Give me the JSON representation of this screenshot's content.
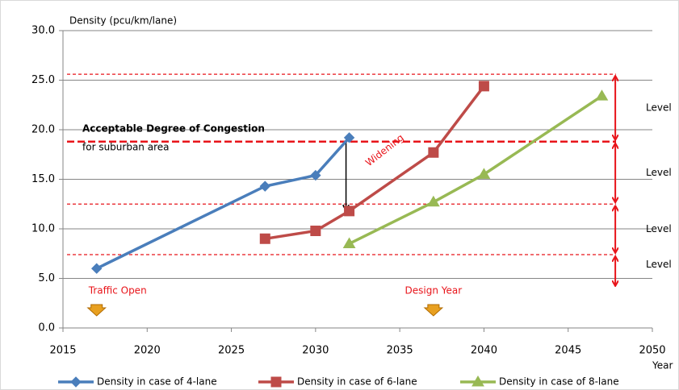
{
  "chart_data": {
    "type": "line",
    "y_label": "Density (pcu/km/lane)",
    "x_label": "Year",
    "xlim": [
      2015,
      2050
    ],
    "xticks": [
      2015,
      2020,
      2025,
      2030,
      2035,
      2040,
      2045,
      2050
    ],
    "ylim": [
      0,
      30
    ],
    "yticks": [
      {
        "value": 0,
        "label": "0.0"
      },
      {
        "value": 5,
        "label": "5.0"
      },
      {
        "value": 10,
        "label": "10.0"
      },
      {
        "value": 15,
        "label": "15.0"
      },
      {
        "value": 20,
        "label": "20.0"
      },
      {
        "value": 25,
        "label": "25.0"
      },
      {
        "value": 30,
        "label": "30.0"
      }
    ],
    "grid": true,
    "series": [
      {
        "name": "Density in case of 4-lane",
        "color": "#4a7ebb",
        "marker": "diamond",
        "x": [
          2017,
          2027,
          2030,
          2032
        ],
        "values": [
          6.0,
          14.3,
          15.4,
          19.2
        ]
      },
      {
        "name": "Density in case of 6-lane",
        "color": "#be4b48",
        "marker": "square",
        "x": [
          2027,
          2030,
          2032,
          2037,
          2040
        ],
        "values": [
          9.0,
          9.8,
          11.8,
          17.7,
          24.4
        ]
      },
      {
        "name": "Density in case of 8-lane",
        "color": "#98b954",
        "marker": "triangle",
        "x": [
          2032,
          2037,
          2040,
          2047
        ],
        "values": [
          8.5,
          12.7,
          15.5,
          23.4
        ]
      }
    ],
    "reference_lines": [
      25.6,
      18.8,
      12.5,
      7.4
    ],
    "reference_color": "#e8141a",
    "congestion_label": [
      "Acceptable Degree of Congestion",
      "for suburban area"
    ],
    "widening_label": "Widening",
    "levels": [
      "Level",
      "Level",
      "Level",
      "Level"
    ],
    "level_arrow_x": 2047.8,
    "markers": [
      {
        "label": "Traffic Open",
        "x": 2017
      },
      {
        "label": "Design Year",
        "x": 2037
      }
    ]
  }
}
